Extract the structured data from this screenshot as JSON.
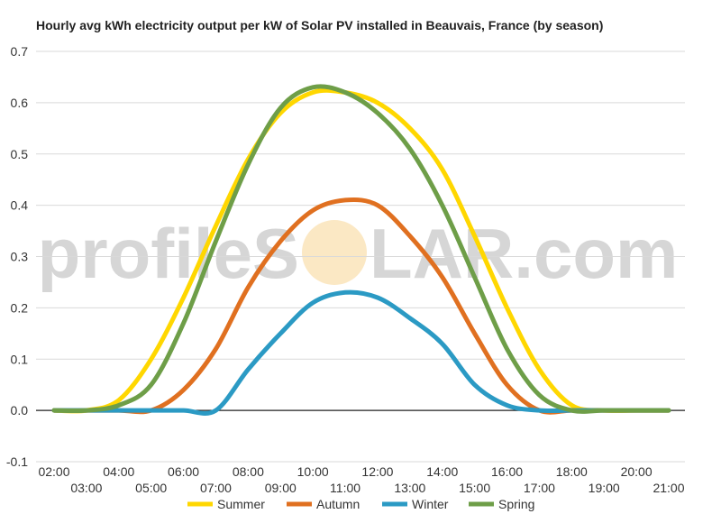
{
  "chart_data": {
    "type": "line",
    "title": "Hourly avg kWh electricity output per kW of Solar PV installed in Beauvais, France (by season)",
    "xlabel": "",
    "ylabel": "",
    "x_tick_labels_upper": [
      "02:00",
      "04:00",
      "06:00",
      "08:00",
      "10:00",
      "12:00",
      "14:00",
      "16:00",
      "18:00",
      "20:00"
    ],
    "x_tick_labels_lower": [
      "03:00",
      "05:00",
      "07:00",
      "09:00",
      "11:00",
      "13:00",
      "15:00",
      "17:00",
      "19:00",
      "21:00"
    ],
    "x": [
      2,
      3,
      4,
      5,
      6,
      7,
      8,
      9,
      10,
      11,
      12,
      13,
      14,
      15,
      16,
      17,
      18,
      19,
      20,
      21
    ],
    "xlim": [
      2,
      21
    ],
    "ylim": [
      -0.1,
      0.7
    ],
    "y_ticks": [
      -0.1,
      0.0,
      0.1,
      0.2,
      0.3,
      0.4,
      0.5,
      0.6,
      0.7
    ],
    "grid": true,
    "legend_position": "bottom",
    "series": [
      {
        "name": "Summer",
        "color": "#FFD700",
        "values": [
          0.0,
          0.0,
          0.02,
          0.1,
          0.22,
          0.36,
          0.49,
          0.58,
          0.62,
          0.62,
          0.6,
          0.55,
          0.47,
          0.34,
          0.2,
          0.08,
          0.01,
          0.0,
          0.0,
          0.0
        ]
      },
      {
        "name": "Autumn",
        "color": "#E07020",
        "values": [
          0.0,
          0.0,
          0.0,
          0.0,
          0.04,
          0.12,
          0.24,
          0.33,
          0.39,
          0.41,
          0.4,
          0.34,
          0.26,
          0.15,
          0.05,
          0.0,
          0.0,
          0.0,
          0.0,
          0.0
        ]
      },
      {
        "name": "Winter",
        "color": "#2B9AC4",
        "values": [
          0.0,
          0.0,
          0.0,
          0.0,
          0.0,
          0.0,
          0.08,
          0.15,
          0.21,
          0.23,
          0.22,
          0.18,
          0.13,
          0.05,
          0.01,
          0.0,
          0.0,
          0.0,
          0.0,
          0.0
        ]
      },
      {
        "name": "Spring",
        "color": "#6E9E48",
        "values": [
          0.0,
          0.0,
          0.01,
          0.05,
          0.17,
          0.33,
          0.48,
          0.59,
          0.63,
          0.62,
          0.58,
          0.51,
          0.4,
          0.26,
          0.12,
          0.03,
          0.0,
          0.0,
          0.0,
          0.0
        ]
      }
    ]
  },
  "watermark": {
    "text_left": "profileS",
    "text_right": "LAR.com",
    "sun_color": "#FBE8C4"
  }
}
